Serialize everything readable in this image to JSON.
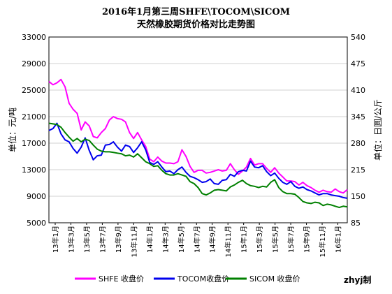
{
  "chart_data": {
    "type": "line",
    "title": "2016年1月第三周SHFE\\TOCOM\\SICOM",
    "subtitle": "天然橡胶期货价格对比走势图",
    "ylabel_left": "单位：元/吨",
    "ylabel_right": "单位：日圆/公斤",
    "ylim_left": [
      5000,
      33000
    ],
    "yticks_left": [
      5000,
      9000,
      13000,
      17000,
      21000,
      25000,
      29000,
      33000
    ],
    "ytick_labels_left": [
      "5000",
      "9000",
      "13000",
      "17000",
      "21000",
      "25000",
      "29000",
      "33000"
    ],
    "ylim_right": [
      85,
      540
    ],
    "yticks_right": [
      85,
      150,
      215,
      280,
      345,
      410,
      475,
      540
    ],
    "ytick_labels_right": [
      "85",
      "150",
      "215",
      "280",
      "345",
      "410",
      "475",
      "540"
    ],
    "xtick_labels": [
      "13年1月",
      "13年3月",
      "13年5月",
      "13年7月",
      "13年9月",
      "13年11月",
      "14年1月",
      "14年3月",
      "14年5月",
      "14年7月",
      "14年9月",
      "14年11月",
      "15年1月",
      "15年3月",
      "15年5月",
      "15年7月",
      "15年9月",
      "15年11月",
      "16年1月"
    ],
    "grid": true,
    "legend_position": "bottom",
    "x": [
      0,
      0.5,
      1,
      1.5,
      2,
      2.5,
      3,
      3.5,
      4,
      4.5,
      5,
      5.5,
      6,
      6.5,
      7,
      7.5,
      8,
      8.5,
      9,
      9.5,
      10,
      10.5,
      11,
      11.5,
      12,
      12.5,
      13,
      13.5,
      14,
      14.5,
      15,
      15.5,
      16,
      16.5,
      17,
      17.5,
      18,
      18.5,
      19,
      19.5,
      20,
      20.5,
      21,
      21.5,
      22,
      22.5,
      23,
      23.5,
      24,
      24.5,
      25,
      25.5,
      26,
      26.5,
      27,
      27.5,
      28,
      28.5,
      29,
      29.5,
      30,
      30.5,
      31,
      31.5,
      32,
      32.5,
      33,
      33.5,
      34,
      34.5,
      35,
      35.5,
      36,
      36.5,
      37
    ],
    "series": [
      {
        "name": "SHFE 收盘价",
        "color": "#ff00ff",
        "axis": "left",
        "values": [
          26300,
          25800,
          26100,
          26600,
          25500,
          23000,
          22100,
          21500,
          19000,
          20200,
          19600,
          18000,
          17800,
          18600,
          19200,
          20500,
          21000,
          20700,
          20600,
          20200,
          18600,
          17700,
          18600,
          17500,
          16500,
          14600,
          14200,
          14900,
          14300,
          14000,
          14000,
          13900,
          14200,
          16000,
          15000,
          13500,
          12600,
          12900,
          12900,
          12500,
          12600,
          12800,
          13000,
          12800,
          12900,
          13900,
          13000,
          12300,
          12800,
          13400,
          14700,
          13700,
          13900,
          13900,
          13200,
          12600,
          13300,
          12500,
          11900,
          11300,
          11300,
          11200,
          10700,
          11100,
          10600,
          10300,
          9900,
          9600,
          9900,
          9700,
          9600,
          10100,
          9700,
          9500,
          10000
        ]
      },
      {
        "name": "TOCOM收盘价",
        "color": "#0000ee",
        "axis": "left",
        "values": [
          18900,
          19200,
          20000,
          18400,
          17500,
          17200,
          16200,
          15500,
          16400,
          17800,
          15900,
          14500,
          15100,
          15200,
          16700,
          16800,
          17200,
          16400,
          15800,
          16700,
          16500,
          15600,
          16300,
          17200,
          16000,
          14100,
          13800,
          14200,
          13400,
          12700,
          12800,
          12400,
          13000,
          13400,
          12600,
          12000,
          11800,
          11500,
          11100,
          11200,
          11600,
          10900,
          10800,
          11400,
          11500,
          12300,
          12000,
          12700,
          12900,
          12800,
          14300,
          13400,
          13300,
          13600,
          12700,
          12100,
          12500,
          11700,
          11100,
          10800,
          11200,
          10500,
          10200,
          10400,
          10000,
          9800,
          9500,
          9200,
          9400,
          9400,
          9200,
          9100,
          9000,
          8800,
          8700
        ]
      },
      {
        "name": "SICOM 收盘价",
        "color": "#008000",
        "axis": "left",
        "values": [
          20000,
          19900,
          19800,
          19400,
          18600,
          17900,
          17300,
          17700,
          17200,
          17600,
          17400,
          16700,
          16100,
          15800,
          15700,
          15700,
          15600,
          15500,
          15400,
          15100,
          15200,
          14900,
          15400,
          14800,
          14200,
          13900,
          13500,
          13600,
          12900,
          12400,
          12200,
          12200,
          12400,
          12200,
          12000,
          11200,
          10900,
          10300,
          9400,
          9200,
          9500,
          9900,
          10000,
          9900,
          9800,
          10400,
          10700,
          11100,
          11400,
          10900,
          10600,
          10500,
          10300,
          10500,
          10400,
          11100,
          11500,
          10300,
          9700,
          9400,
          9400,
          9300,
          8800,
          8200,
          8000,
          7900,
          8100,
          8000,
          7600,
          7800,
          7700,
          7500,
          7300,
          7500,
          7400
        ]
      }
    ]
  },
  "legend": [
    {
      "label": "SHFE 收盘价",
      "color": "#ff00ff"
    },
    {
      "label": "TOCOM收盘价",
      "color": "#0000ee"
    },
    {
      "label": "SICOM 收盘价",
      "color": "#008000"
    }
  ],
  "credit": "zhyj制"
}
